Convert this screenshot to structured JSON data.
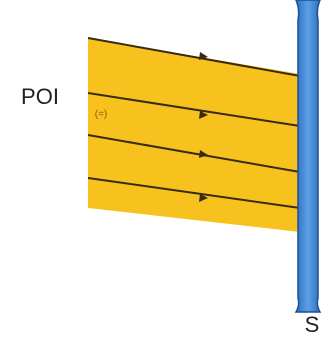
{
  "labels": {
    "beam": "POI",
    "polarization": "(=)",
    "surface": "S"
  }
}
